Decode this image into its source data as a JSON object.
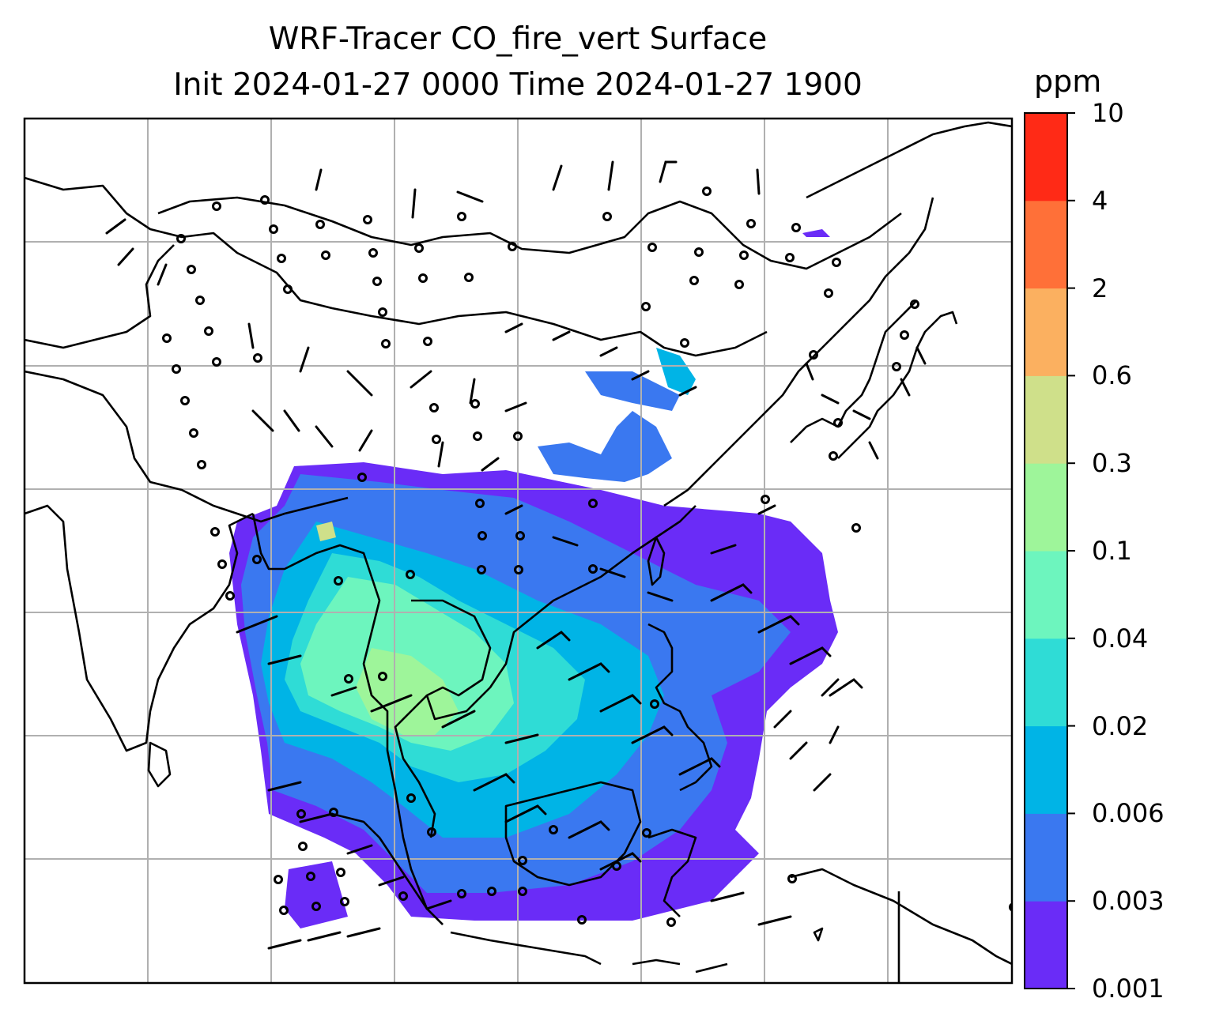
{
  "title": {
    "line1": "WRF-Tracer CO_fire_vert Surface",
    "line2": "Init 2024-01-27 0000 Time 2024-01-27 1900"
  },
  "colorbar": {
    "units": "ppm",
    "levels": [
      "0.001",
      "0.003",
      "0.006",
      "0.02",
      "0.04",
      "0.1",
      "0.3",
      "0.6",
      "2",
      "4",
      "10"
    ],
    "colors": [
      "#6a2cf7",
      "#3a78f0",
      "#00b4e6",
      "#2fdcd6",
      "#6df5be",
      "#9ef59a",
      "#cfe08a",
      "#fbb060",
      "#ff7038",
      "#ff2a16"
    ]
  },
  "map": {
    "grid": "on",
    "coastline_color": "#000000",
    "gridline_color": "#b0b0b0",
    "wind_barbs": "shown"
  }
}
